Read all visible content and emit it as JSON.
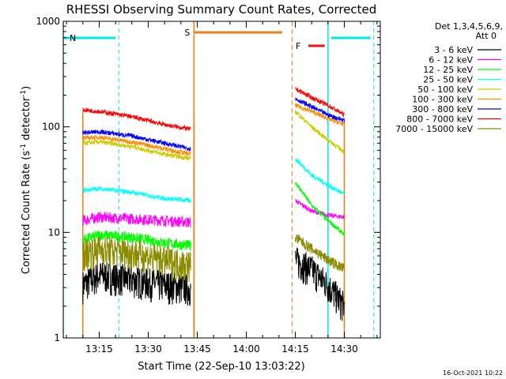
{
  "chart_data": {
    "type": "line",
    "title": "RHESSI Observing Summary Count Rates, Corrected",
    "xlabel": "Start Time (22-Sep-10 13:03:22)",
    "ylabel": "Corrected Count Rate (s⁻¹ detector⁻¹)",
    "ylabel_main": "Corrected Count Rate (s",
    "ylabel_sup1": "-1",
    "ylabel_mid": " detector",
    "ylabel_sup2": "-1",
    "ylabel_end": ")",
    "yscale": "log",
    "ylim": [
      1,
      1000
    ],
    "xlim": [
      "13:04",
      "14:41"
    ],
    "x_tick_labels": [
      "13:15",
      "13:30",
      "13:45",
      "14:00",
      "14:15",
      "14:30"
    ],
    "y_tick_labels": [
      "1",
      "10",
      "100",
      "1000"
    ],
    "grid": false,
    "legend_position": "top-right",
    "legend_header": [
      "Det 1,3,4,5,6,9,",
      "Att 0"
    ],
    "footer_date": "16-Oct-2021 10:22",
    "flag_annotations": [
      {
        "label": "N",
        "color": "#00e5ee",
        "solid_lines": [
          "13:04",
          "14:25"
        ],
        "dashed_lines": [
          "13:21",
          "14:39"
        ],
        "bars": [
          [
            "13:04",
            "13:20"
          ],
          [
            "14:26",
            "14:38"
          ]
        ]
      },
      {
        "label": "S",
        "color": "#ee7d1a",
        "solid_lines": [
          "13:44"
        ],
        "dashed_lines": [],
        "bars": [
          [
            "13:44",
            "14:11"
          ]
        ]
      },
      {
        "label": "F",
        "color": "#ee1111",
        "solid_lines": [],
        "dashed_lines": [],
        "bars": [
          [
            "14:19",
            "14:24"
          ]
        ]
      }
    ],
    "orange_markers": {
      "solid": [
        "13:44",
        "14:30"
      ],
      "dashed": [
        "14:14"
      ],
      "data_gap_bottom": [
        "13:10",
        "13:44"
      ]
    },
    "series": [
      {
        "name": "3 - 6 keV",
        "color": "#000000",
        "segments": [
          [
            [
              "13:10",
              3.2
            ],
            [
              "13:15",
              4.0
            ],
            [
              "13:25",
              3.6
            ],
            [
              "13:35",
              3.2
            ],
            [
              "13:43",
              3.0
            ]
          ],
          [
            [
              "14:15",
              5.5
            ],
            [
              "14:20",
              4.5
            ],
            [
              "14:25",
              3.2
            ],
            [
              "14:30",
              2.0
            ]
          ]
        ]
      },
      {
        "name": "6 - 12 keV",
        "color": "#ff00ff",
        "segments": [
          [
            [
              "13:10",
              13
            ],
            [
              "13:15",
              14
            ],
            [
              "13:25",
              13.5
            ],
            [
              "13:35",
              13
            ],
            [
              "13:43",
              12.5
            ]
          ],
          [
            [
              "14:15",
              20
            ],
            [
              "14:20",
              16
            ],
            [
              "14:25",
              14.5
            ],
            [
              "14:30",
              14
            ]
          ]
        ]
      },
      {
        "name": "12 - 25 keV",
        "color": "#00ff00",
        "segments": [
          [
            [
              "13:10",
              8.5
            ],
            [
              "13:15",
              9.5
            ],
            [
              "13:25",
              9.0
            ],
            [
              "13:35",
              8.0
            ],
            [
              "13:43",
              7.5
            ]
          ],
          [
            [
              "14:15",
              30
            ],
            [
              "14:20",
              18
            ],
            [
              "14:25",
              13
            ],
            [
              "14:30",
              9.5
            ]
          ]
        ]
      },
      {
        "name": "25 - 50 keV",
        "color": "#00ffff",
        "segments": [
          [
            [
              "13:10",
              25
            ],
            [
              "13:15",
              26
            ],
            [
              "13:25",
              24
            ],
            [
              "13:35",
              21
            ],
            [
              "13:43",
              20
            ]
          ],
          [
            [
              "14:15",
              50
            ],
            [
              "14:20",
              35
            ],
            [
              "14:25",
              28
            ],
            [
              "14:30",
              23
            ]
          ]
        ]
      },
      {
        "name": "50 - 100 keV",
        "color": "#cccc00",
        "segments": [
          [
            [
              "13:10",
              70
            ],
            [
              "13:15",
              72
            ],
            [
              "13:25",
              65
            ],
            [
              "13:35",
              55
            ],
            [
              "13:43",
              50
            ]
          ],
          [
            [
              "14:15",
              140
            ],
            [
              "14:20",
              100
            ],
            [
              "14:25",
              75
            ],
            [
              "14:30",
              58
            ]
          ]
        ]
      },
      {
        "name": "100 - 300 keV",
        "color": "#ff8c00",
        "segments": [
          [
            [
              "13:10",
              78
            ],
            [
              "13:15",
              80
            ],
            [
              "13:25",
              72
            ],
            [
              "13:35",
              62
            ],
            [
              "13:43",
              55
            ]
          ],
          [
            [
              "14:15",
              160
            ],
            [
              "14:20",
              140
            ],
            [
              "14:25",
              120
            ],
            [
              "14:30",
              105
            ]
          ]
        ]
      },
      {
        "name": "300 - 800 keV",
        "color": "#0000ff",
        "segments": [
          [
            [
              "13:10",
              88
            ],
            [
              "13:15",
              90
            ],
            [
              "13:25",
              82
            ],
            [
              "13:35",
              70
            ],
            [
              "13:43",
              62
            ]
          ],
          [
            [
              "14:15",
              185
            ],
            [
              "14:20",
              155
            ],
            [
              "14:25",
              130
            ],
            [
              "14:30",
              115
            ]
          ]
        ]
      },
      {
        "name": "800 - 7000 keV",
        "color": "#ff0000",
        "segments": [
          [
            [
              "13:10",
              145
            ],
            [
              "13:15",
              140
            ],
            [
              "13:25",
              125
            ],
            [
              "13:35",
              105
            ],
            [
              "13:43",
              95
            ]
          ],
          [
            [
              "14:15",
              230
            ],
            [
              "14:20",
              190
            ],
            [
              "14:25",
              160
            ],
            [
              "14:30",
              130
            ]
          ]
        ]
      },
      {
        "name": "7000 - 15000 keV",
        "color": "#8b8b00",
        "segments": [
          [
            [
              "13:10",
              6.5
            ],
            [
              "13:15",
              7.0
            ],
            [
              "13:25",
              6.5
            ],
            [
              "13:35",
              5.5
            ],
            [
              "13:43",
              5.0
            ]
          ],
          [
            [
              "14:15",
              9.0
            ],
            [
              "14:20",
              7.0
            ],
            [
              "14:25",
              5.5
            ],
            [
              "14:30",
              4.5
            ]
          ]
        ]
      }
    ]
  }
}
